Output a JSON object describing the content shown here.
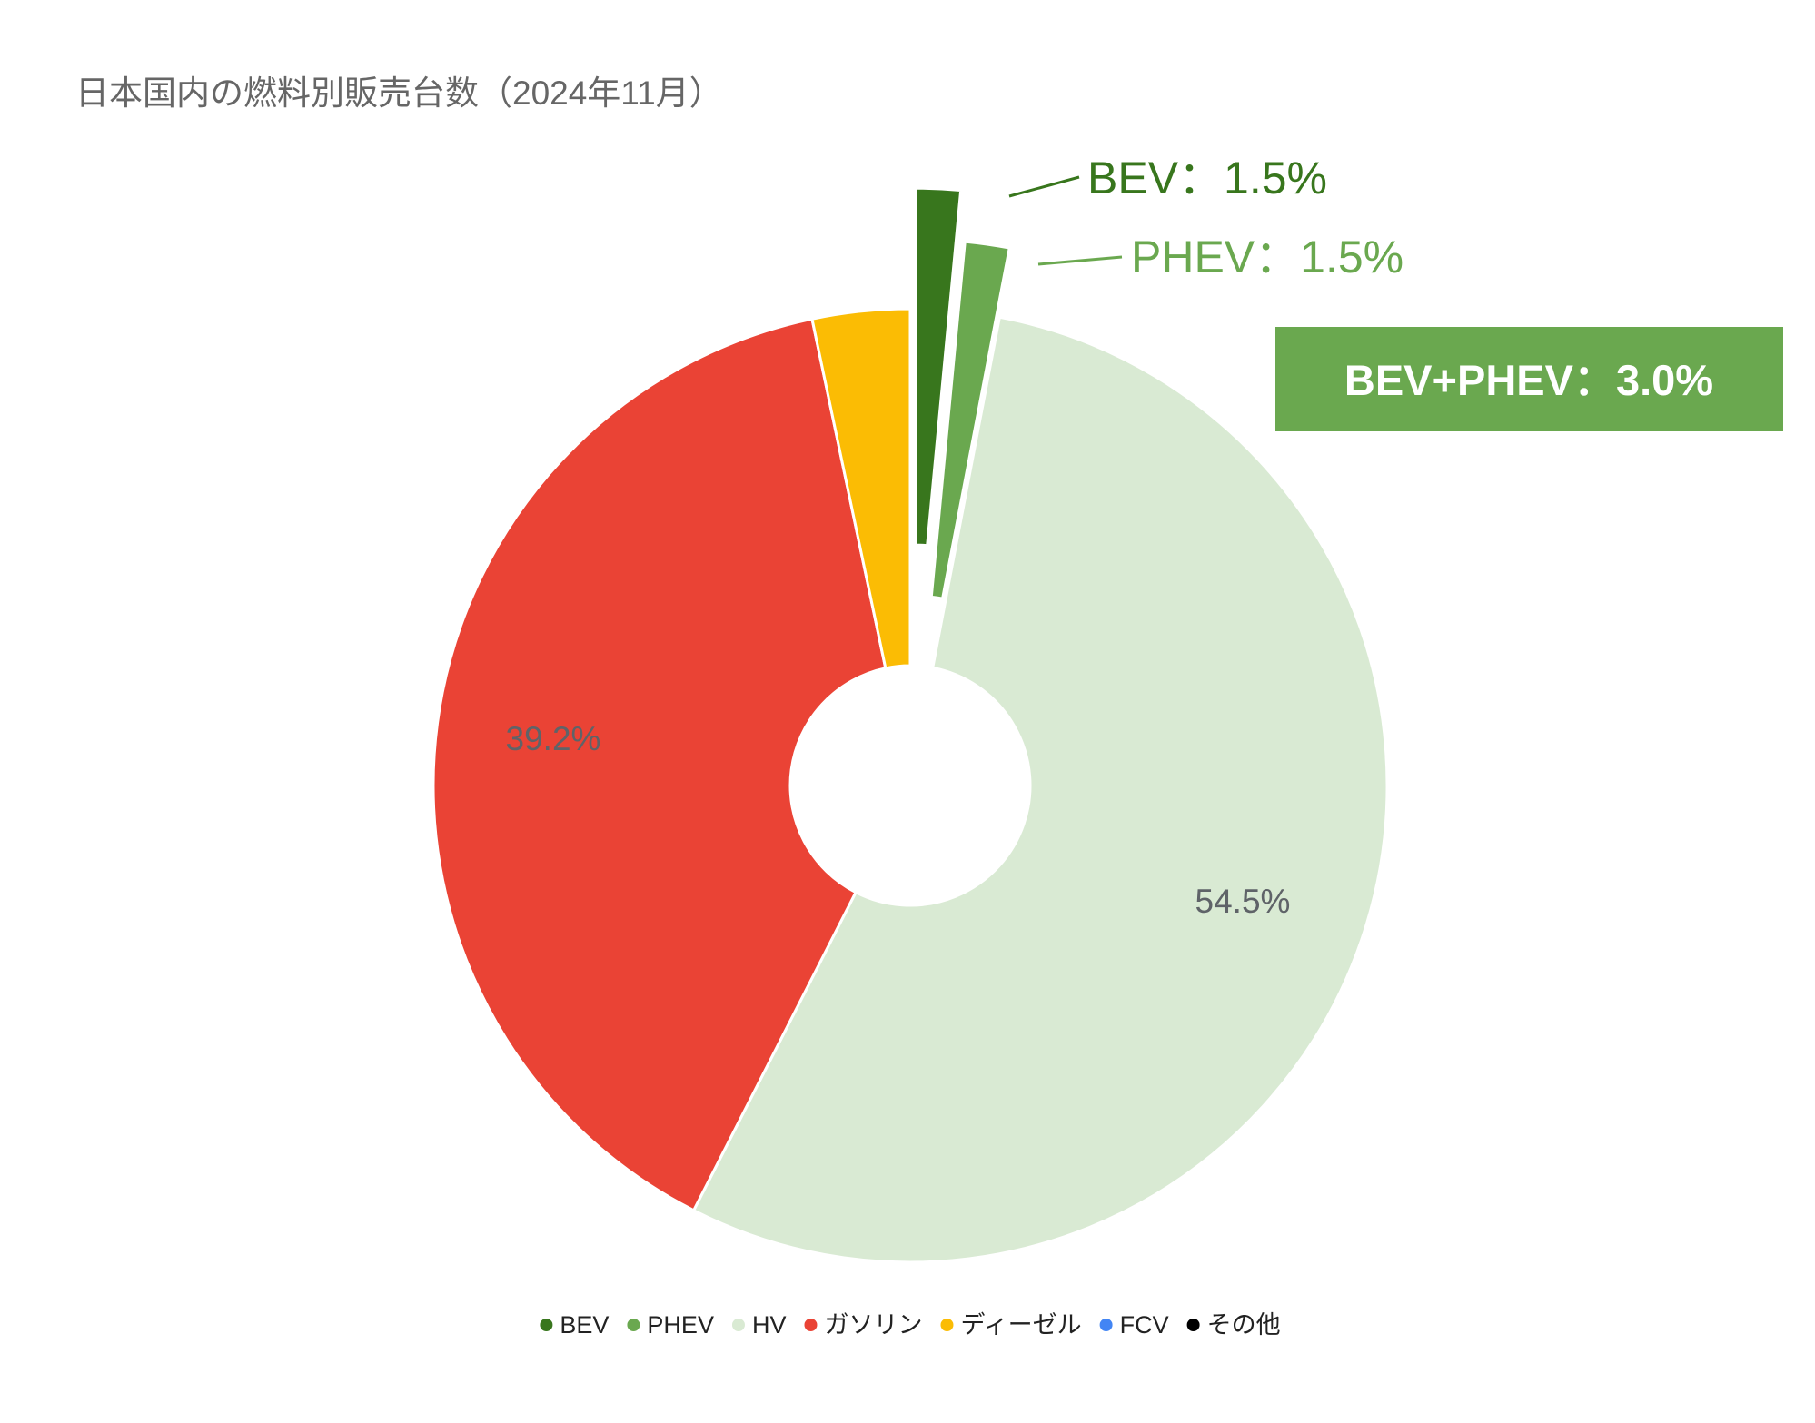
{
  "chart_data": {
    "type": "pie",
    "donut": true,
    "title": "日本国内の燃料別販売台数（2024年11月）",
    "categories": [
      "BEV",
      "PHEV",
      "HV",
      "ガソリン",
      "ディーゼル",
      "FCV",
      "その他"
    ],
    "values": [
      1.5,
      1.5,
      54.5,
      39.2,
      3.3,
      0,
      0
    ],
    "unit": "%",
    "colors": [
      "#38761d",
      "#6aa84f",
      "#d9ead3",
      "#ea4335",
      "#fbbc04",
      "#4285f4",
      "#000000"
    ],
    "exploded": [
      "BEV",
      "PHEV"
    ],
    "legend_position": "bottom",
    "data_labels": {
      "hv": "54.5%",
      "gasoline": "39.2%"
    },
    "callouts": {
      "bev": "BEV：1.5%",
      "phev": "PHEV：1.5%",
      "combined": "BEV+PHEV：3.0%"
    }
  }
}
